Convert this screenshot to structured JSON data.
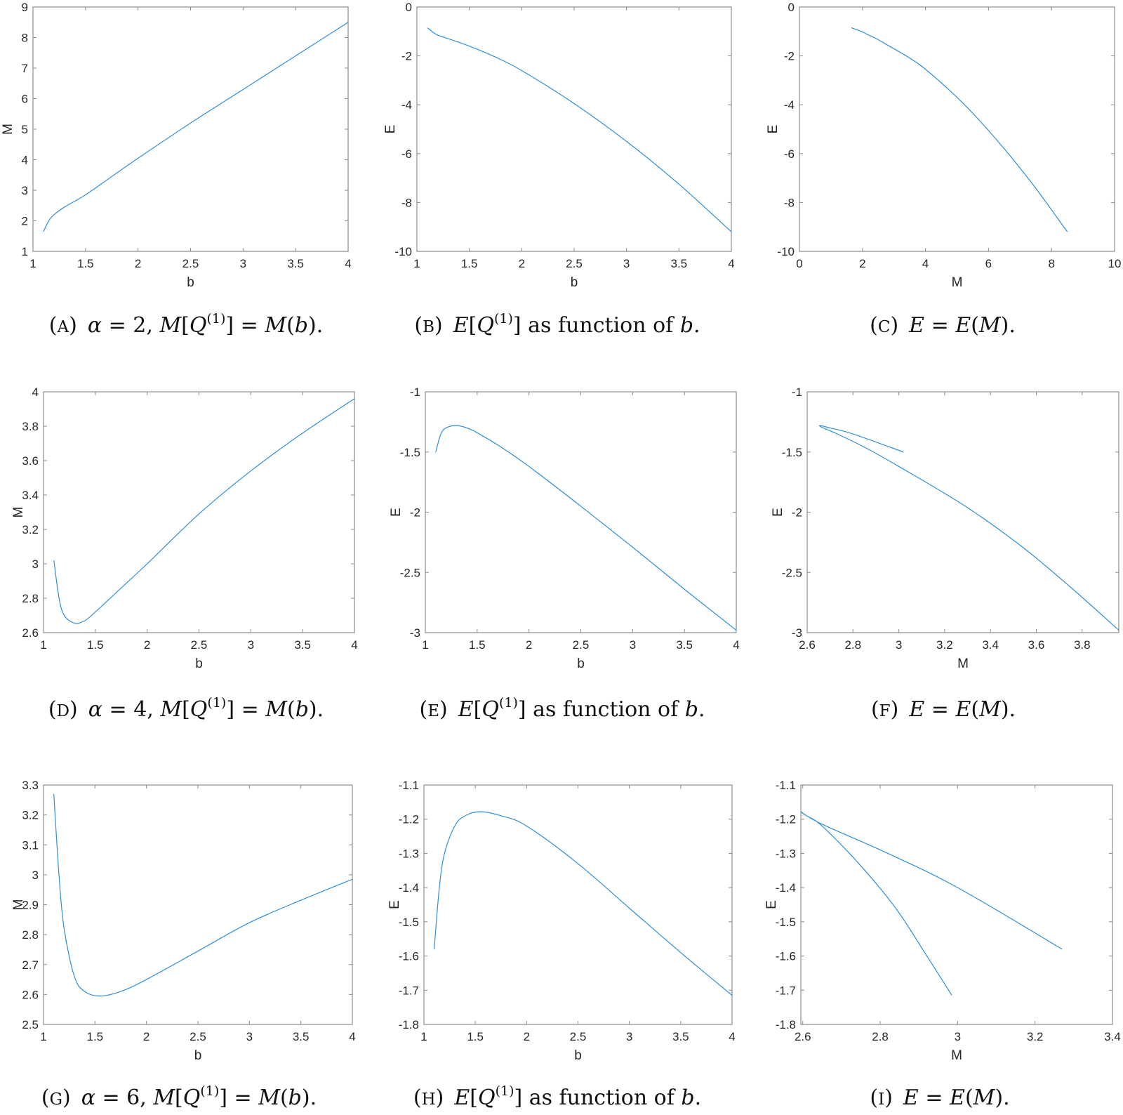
{
  "line_color": "#2f8fd8",
  "chart_data": [
    {
      "type": "line",
      "panel": "A",
      "xlabel": "b",
      "ylabel": "M",
      "xlim": [
        1,
        4
      ],
      "ylim": [
        1,
        9
      ],
      "xticks": [
        "1",
        "1.5",
        "2",
        "2.5",
        "3",
        "3.5",
        "4"
      ],
      "yticks": [
        "1",
        "2",
        "3",
        "4",
        "5",
        "6",
        "7",
        "8",
        "9"
      ],
      "series": [
        {
          "name": "M(b)",
          "x": [
            1.1,
            1.15,
            1.2,
            1.3,
            1.5,
            1.75,
            2,
            2.5,
            3,
            3.5,
            4
          ],
          "y": [
            1.65,
            2.0,
            2.2,
            2.45,
            2.85,
            3.45,
            4.05,
            5.2,
            6.3,
            7.4,
            8.5
          ]
        }
      ],
      "caption": {
        "label": "A",
        "parts": [
          {
            "t": "α",
            "s": "i"
          },
          {
            "t": " = 2, "
          },
          {
            "t": "M",
            "s": "i"
          },
          {
            "t": "["
          },
          {
            "t": "Q",
            "s": "i"
          },
          {
            "t": "(1)",
            "s": "sup"
          },
          {
            "t": "] = "
          },
          {
            "t": "M",
            "s": "i"
          },
          {
            "t": "("
          },
          {
            "t": "b",
            "s": "i"
          },
          {
            "t": ")."
          }
        ]
      }
    },
    {
      "type": "line",
      "panel": "B",
      "xlabel": "b",
      "ylabel": "E",
      "xlim": [
        1,
        4
      ],
      "ylim": [
        -10,
        0
      ],
      "xticks": [
        "1",
        "1.5",
        "2",
        "2.5",
        "3",
        "3.5",
        "4"
      ],
      "yticks": [
        "-10",
        "-8",
        "-6",
        "-4",
        "-2",
        "0"
      ],
      "series": [
        {
          "name": "E(b)",
          "x": [
            1.1,
            1.15,
            1.2,
            1.3,
            1.5,
            1.75,
            2,
            2.5,
            3,
            3.5,
            4
          ],
          "y": [
            -0.85,
            -1.02,
            -1.15,
            -1.3,
            -1.6,
            -2.05,
            -2.6,
            -3.95,
            -5.5,
            -7.25,
            -9.2
          ]
        }
      ],
      "caption": {
        "label": "B",
        "parts": [
          {
            "t": "E",
            "s": "i"
          },
          {
            "t": "["
          },
          {
            "t": "Q",
            "s": "i"
          },
          {
            "t": "(1)",
            "s": "sup"
          },
          {
            "t": "] as function of "
          },
          {
            "t": "b",
            "s": "i"
          },
          {
            "t": "."
          }
        ]
      }
    },
    {
      "type": "line",
      "panel": "C",
      "xlabel": "M",
      "ylabel": "E",
      "xlim": [
        0,
        10
      ],
      "ylim": [
        -10,
        0
      ],
      "xticks": [
        "0",
        "2",
        "4",
        "6",
        "8",
        "10"
      ],
      "yticks": [
        "-10",
        "-8",
        "-6",
        "-4",
        "-2",
        "0"
      ],
      "series": [
        {
          "name": "E(M)",
          "x": [
            1.65,
            2.0,
            2.2,
            2.45,
            2.85,
            3.45,
            4.05,
            5.2,
            6.3,
            7.4,
            8.5
          ],
          "y": [
            -0.85,
            -1.02,
            -1.15,
            -1.3,
            -1.6,
            -2.05,
            -2.6,
            -3.95,
            -5.5,
            -7.25,
            -9.2
          ]
        }
      ],
      "caption": {
        "label": "C",
        "parts": [
          {
            "t": "E",
            "s": "i"
          },
          {
            "t": " = "
          },
          {
            "t": "E",
            "s": "i"
          },
          {
            "t": "("
          },
          {
            "t": "M",
            "s": "i"
          },
          {
            "t": ")."
          }
        ]
      }
    },
    {
      "type": "line",
      "panel": "D",
      "xlabel": "b",
      "ylabel": "M",
      "xlim": [
        1,
        4
      ],
      "ylim": [
        2.6,
        4
      ],
      "xticks": [
        "1",
        "1.5",
        "2",
        "2.5",
        "3",
        "3.5",
        "4"
      ],
      "yticks": [
        "2.6",
        "2.8",
        "3",
        "3.2",
        "3.4",
        "3.6",
        "3.8",
        "4"
      ],
      "series": [
        {
          "name": "M(b)",
          "x": [
            1.1,
            1.15,
            1.2,
            1.3,
            1.4,
            1.5,
            1.75,
            2,
            2.5,
            3,
            3.5,
            4
          ],
          "y": [
            3.02,
            2.8,
            2.7,
            2.655,
            2.67,
            2.72,
            2.86,
            3.0,
            3.29,
            3.54,
            3.76,
            3.96
          ]
        }
      ],
      "caption": {
        "label": "D",
        "parts": [
          {
            "t": "α",
            "s": "i"
          },
          {
            "t": " = 4, "
          },
          {
            "t": "M",
            "s": "i"
          },
          {
            "t": "["
          },
          {
            "t": "Q",
            "s": "i"
          },
          {
            "t": "(1)",
            "s": "sup"
          },
          {
            "t": "] = "
          },
          {
            "t": "M",
            "s": "i"
          },
          {
            "t": "("
          },
          {
            "t": "b",
            "s": "i"
          },
          {
            "t": ")."
          }
        ]
      }
    },
    {
      "type": "line",
      "panel": "E",
      "xlabel": "b",
      "ylabel": "E",
      "xlim": [
        1,
        4
      ],
      "ylim": [
        -3,
        -1
      ],
      "xticks": [
        "1",
        "1.5",
        "2",
        "2.5",
        "3",
        "3.5",
        "4"
      ],
      "yticks": [
        "-3",
        "-2.5",
        "-2",
        "-1.5",
        "-1"
      ],
      "series": [
        {
          "name": "E(b)",
          "x": [
            1.1,
            1.15,
            1.2,
            1.3,
            1.4,
            1.5,
            1.75,
            2,
            2.5,
            3,
            3.5,
            4
          ],
          "y": [
            -1.5,
            -1.35,
            -1.3,
            -1.28,
            -1.3,
            -1.34,
            -1.47,
            -1.62,
            -1.95,
            -2.29,
            -2.64,
            -2.98
          ]
        }
      ],
      "caption": {
        "label": "E",
        "parts": [
          {
            "t": "E",
            "s": "i"
          },
          {
            "t": "["
          },
          {
            "t": "Q",
            "s": "i"
          },
          {
            "t": "(1)",
            "s": "sup"
          },
          {
            "t": "] as function of "
          },
          {
            "t": "b",
            "s": "i"
          },
          {
            "t": "."
          }
        ]
      }
    },
    {
      "type": "line",
      "panel": "F",
      "xlabel": "M",
      "ylabel": "E",
      "xlim": [
        2.6,
        3.96
      ],
      "ylim": [
        -3,
        -1
      ],
      "xticks": [
        "2.6",
        "2.8",
        "3",
        "3.2",
        "3.4",
        "3.6",
        "3.8"
      ],
      "yticks": [
        "-3",
        "-2.5",
        "-2",
        "-1.5",
        "-1"
      ],
      "series": [
        {
          "name": "E(M)",
          "x": [
            3.02,
            2.8,
            2.7,
            2.655,
            2.67,
            2.72,
            2.86,
            3.0,
            3.29,
            3.54,
            3.76,
            3.96
          ],
          "y": [
            -1.5,
            -1.35,
            -1.3,
            -1.28,
            -1.3,
            -1.34,
            -1.47,
            -1.62,
            -1.95,
            -2.29,
            -2.64,
            -2.98
          ]
        }
      ],
      "caption": {
        "label": "F",
        "parts": [
          {
            "t": "E",
            "s": "i"
          },
          {
            "t": " = "
          },
          {
            "t": "E",
            "s": "i"
          },
          {
            "t": "("
          },
          {
            "t": "M",
            "s": "i"
          },
          {
            "t": ")."
          }
        ]
      }
    },
    {
      "type": "line",
      "panel": "G",
      "xlabel": "b",
      "ylabel": "M",
      "xlim": [
        1,
        4
      ],
      "ylim": [
        2.5,
        3.3
      ],
      "xticks": [
        "1",
        "1.5",
        "2",
        "2.5",
        "3",
        "3.5",
        "4"
      ],
      "yticks": [
        "2.5",
        "2.6",
        "2.7",
        "2.8",
        "2.9",
        "3",
        "3.1",
        "3.2",
        "3.3"
      ],
      "series": [
        {
          "name": "M(b)",
          "x": [
            1.1,
            1.15,
            1.2,
            1.3,
            1.4,
            1.55,
            1.75,
            2,
            2.5,
            3,
            3.5,
            4
          ],
          "y": [
            3.27,
            3.0,
            2.82,
            2.66,
            2.61,
            2.595,
            2.61,
            2.65,
            2.745,
            2.84,
            2.915,
            2.985
          ]
        }
      ],
      "caption": {
        "label": "G",
        "parts": [
          {
            "t": "α",
            "s": "i"
          },
          {
            "t": " = 6, "
          },
          {
            "t": "M",
            "s": "i"
          },
          {
            "t": "["
          },
          {
            "t": "Q",
            "s": "i"
          },
          {
            "t": "(1)",
            "s": "sup"
          },
          {
            "t": "] = "
          },
          {
            "t": "M",
            "s": "i"
          },
          {
            "t": "("
          },
          {
            "t": "b",
            "s": "i"
          },
          {
            "t": ")."
          }
        ]
      }
    },
    {
      "type": "line",
      "panel": "H",
      "xlabel": "b",
      "ylabel": "E",
      "xlim": [
        1,
        4
      ],
      "ylim": [
        -1.8,
        -1.1
      ],
      "xticks": [
        "1",
        "1.5",
        "2",
        "2.5",
        "3",
        "3.5",
        "4"
      ],
      "yticks": [
        "-1.8",
        "-1.7",
        "-1.6",
        "-1.5",
        "-1.4",
        "-1.3",
        "-1.2",
        "-1.1"
      ],
      "series": [
        {
          "name": "E(b)",
          "x": [
            1.1,
            1.15,
            1.2,
            1.3,
            1.4,
            1.55,
            1.75,
            2,
            2.5,
            3,
            3.5,
            4
          ],
          "y": [
            -1.58,
            -1.4,
            -1.3,
            -1.22,
            -1.19,
            -1.178,
            -1.19,
            -1.22,
            -1.33,
            -1.46,
            -1.59,
            -1.715
          ]
        }
      ],
      "caption": {
        "label": "H",
        "parts": [
          {
            "t": "E",
            "s": "i"
          },
          {
            "t": "["
          },
          {
            "t": "Q",
            "s": "i"
          },
          {
            "t": "(1)",
            "s": "sup"
          },
          {
            "t": "] as function of "
          },
          {
            "t": "b",
            "s": "i"
          },
          {
            "t": "."
          }
        ]
      }
    },
    {
      "type": "line",
      "panel": "I",
      "xlabel": "M",
      "ylabel": "E",
      "xlim": [
        2.595,
        3.4
      ],
      "ylim": [
        -1.8,
        -1.1
      ],
      "xticks": [
        "2.6",
        "2.8",
        "3",
        "3.2",
        "3.4"
      ],
      "yticks": [
        "-1.8",
        "-1.7",
        "-1.6",
        "-1.5",
        "-1.4",
        "-1.3",
        "-1.2",
        "-1.1"
      ],
      "series": [
        {
          "name": "E(M)",
          "x": [
            3.27,
            3.0,
            2.82,
            2.66,
            2.61,
            2.595,
            2.61,
            2.65,
            2.745,
            2.84,
            2.915,
            2.985
          ],
          "y": [
            -1.58,
            -1.4,
            -1.3,
            -1.22,
            -1.19,
            -1.178,
            -1.19,
            -1.22,
            -1.33,
            -1.46,
            -1.59,
            -1.715
          ]
        }
      ],
      "caption": {
        "label": "I",
        "parts": [
          {
            "t": "E",
            "s": "i"
          },
          {
            "t": " = "
          },
          {
            "t": "E",
            "s": "i"
          },
          {
            "t": "("
          },
          {
            "t": "M",
            "s": "i"
          },
          {
            "t": ")."
          }
        ]
      }
    }
  ]
}
